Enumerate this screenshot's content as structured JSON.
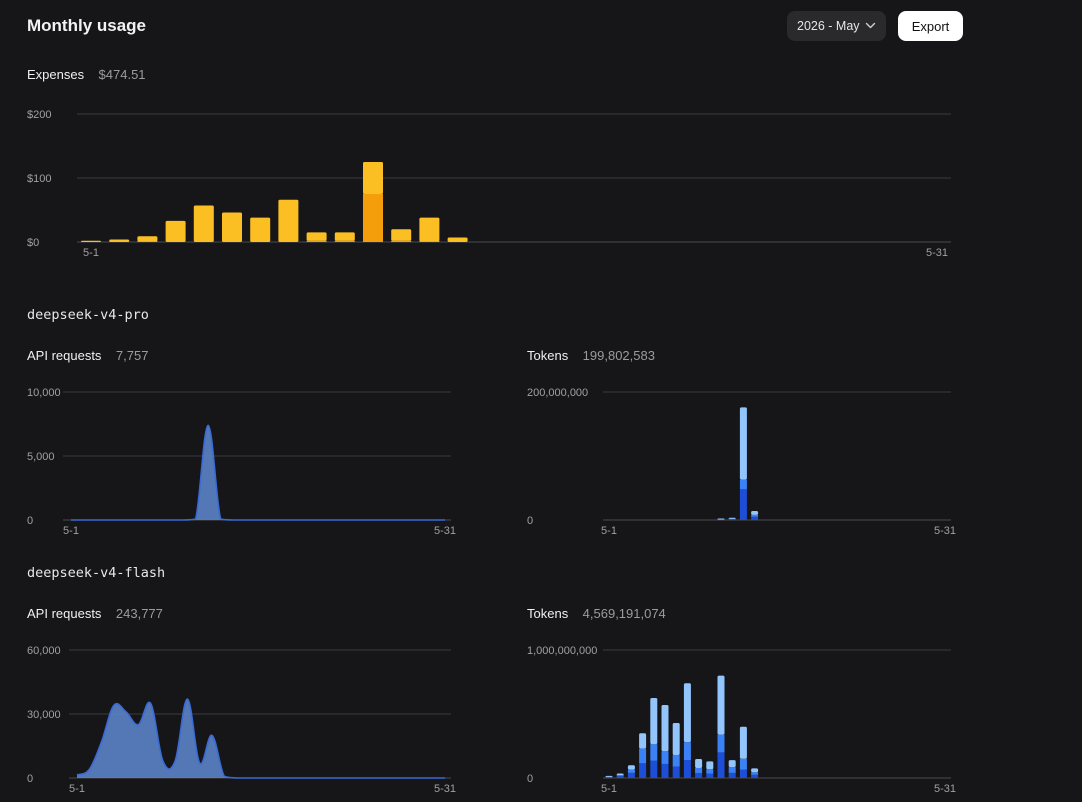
{
  "header": {
    "title": "Monthly usage",
    "month_selector": "2026 - May",
    "export_label": "Export"
  },
  "expenses": {
    "label": "Expenses",
    "value": "$474.51"
  },
  "models": [
    {
      "name": "deepseek-v4-pro",
      "requests": {
        "label": "API requests",
        "value": "7,757"
      },
      "tokens": {
        "label": "Tokens",
        "value": "199,802,583"
      }
    },
    {
      "name": "deepseek-v4-flash",
      "requests": {
        "label": "API requests",
        "value": "243,777"
      },
      "tokens": {
        "label": "Tokens",
        "value": "4,569,191,074"
      }
    }
  ],
  "colors": {
    "expense_primary": "#fbbf24",
    "expense_secondary": "#f59e0b",
    "area_fill": "#5b83c6",
    "area_stroke": "#3a6ad6",
    "token_light": "#93c5fd",
    "token_mid": "#3b82f6",
    "token_dark": "#1d4ed8"
  },
  "chart_data": [
    {
      "id": "expenses",
      "type": "bar",
      "x_start_label": "5-1",
      "x_end_label": "5-31",
      "days": 31,
      "ylim": [
        0,
        200
      ],
      "yticks": [
        0,
        100,
        200
      ],
      "ytick_labels": [
        "$0",
        "$100",
        "$200"
      ],
      "series": [
        {
          "values": [
            2,
            4,
            8,
            33,
            57,
            46,
            38,
            66,
            13,
            13,
            50,
            18,
            37,
            7,
            0,
            0,
            0,
            0,
            0,
            0,
            0,
            0,
            0,
            0,
            0,
            0,
            0,
            0,
            0,
            0,
            0
          ]
        },
        {
          "values": [
            0,
            0,
            1,
            0,
            0,
            0,
            0,
            0,
            2,
            2,
            75,
            2,
            1,
            0,
            0,
            0,
            0,
            0,
            0,
            0,
            0,
            0,
            0,
            0,
            0,
            0,
            0,
            0,
            0,
            0,
            0
          ]
        }
      ]
    },
    {
      "id": "pro-requests",
      "type": "area",
      "x_start_label": "5-1",
      "x_end_label": "5-31",
      "days": 31,
      "ylim": [
        0,
        10000
      ],
      "yticks": [
        0,
        5000,
        10000
      ],
      "ytick_labels": [
        "0",
        "5,000",
        "10,000"
      ],
      "values": [
        0,
        0,
        0,
        0,
        0,
        0,
        0,
        0,
        0,
        0,
        80,
        7400,
        80,
        0,
        0,
        0,
        0,
        0,
        0,
        0,
        0,
        0,
        0,
        0,
        0,
        0,
        0,
        0,
        0,
        0,
        0
      ]
    },
    {
      "id": "pro-tokens",
      "type": "bar",
      "x_start_label": "5-1",
      "x_end_label": "5-31",
      "days": 31,
      "ylim": [
        0,
        200000000
      ],
      "yticks": [
        0,
        200000000
      ],
      "ytick_labels": [
        "0",
        "200,000,000"
      ],
      "series": [
        {
          "values": [
            0,
            0,
            0,
            0,
            0,
            0,
            0,
            0,
            0,
            0,
            500000,
            1500000,
            48000000,
            5000000,
            0,
            0,
            0,
            0,
            0,
            0,
            0,
            0,
            0,
            0,
            0,
            0,
            0,
            0,
            0,
            0,
            0
          ]
        },
        {
          "values": [
            0,
            0,
            0,
            0,
            0,
            0,
            0,
            0,
            0,
            0,
            200000,
            500000,
            15000000,
            3000000,
            0,
            0,
            0,
            0,
            0,
            0,
            0,
            0,
            0,
            0,
            0,
            0,
            0,
            0,
            0,
            0,
            0
          ]
        },
        {
          "values": [
            0,
            0,
            0,
            0,
            0,
            0,
            0,
            0,
            0,
            0,
            300000,
            1000000,
            113000000,
            6000000,
            0,
            0,
            0,
            0,
            0,
            0,
            0,
            0,
            0,
            0,
            0,
            0,
            0,
            0,
            0,
            0,
            0
          ]
        }
      ]
    },
    {
      "id": "flash-requests",
      "type": "area",
      "x_start_label": "5-1",
      "x_end_label": "5-31",
      "days": 31,
      "ylim": [
        0,
        60000
      ],
      "yticks": [
        0,
        30000,
        60000
      ],
      "ytick_labels": [
        "0",
        "30,000",
        "60,000"
      ],
      "values": [
        1500,
        4000,
        17000,
        34000,
        31000,
        25000,
        35000,
        8000,
        8000,
        37000,
        7000,
        20000,
        800,
        0,
        0,
        0,
        0,
        0,
        0,
        0,
        0,
        0,
        0,
        0,
        0,
        0,
        0,
        0,
        0,
        0,
        0
      ]
    },
    {
      "id": "flash-tokens",
      "type": "bar",
      "x_start_label": "5-1",
      "x_end_label": "5-31",
      "days": 31,
      "ylim": [
        0,
        1000000000
      ],
      "yticks": [
        0,
        1000000000
      ],
      "ytick_labels": [
        "0",
        "1,000,000,000"
      ],
      "series": [
        {
          "values": [
            6000000,
            15000000,
            40000000,
            115000000,
            135000000,
            110000000,
            90000000,
            140000000,
            38000000,
            35000000,
            200000000,
            40000000,
            65000000,
            25000000,
            0,
            0,
            0,
            0,
            0,
            0,
            0,
            0,
            0,
            0,
            0,
            0,
            0,
            0,
            0,
            0,
            0
          ]
        },
        {
          "values": [
            3000000,
            8000000,
            25000000,
            115000000,
            130000000,
            100000000,
            90000000,
            140000000,
            40000000,
            33000000,
            140000000,
            45000000,
            85000000,
            20000000,
            0,
            0,
            0,
            0,
            0,
            0,
            0,
            0,
            0,
            0,
            0,
            0,
            0,
            0,
            0,
            0,
            0
          ]
        },
        {
          "values": [
            6000000,
            12000000,
            35000000,
            120000000,
            360000000,
            360000000,
            250000000,
            460000000,
            70000000,
            62000000,
            460000000,
            55000000,
            250000000,
            30000000,
            0,
            0,
            0,
            0,
            0,
            0,
            0,
            0,
            0,
            0,
            0,
            0,
            0,
            0,
            0,
            0,
            0
          ]
        }
      ]
    }
  ]
}
